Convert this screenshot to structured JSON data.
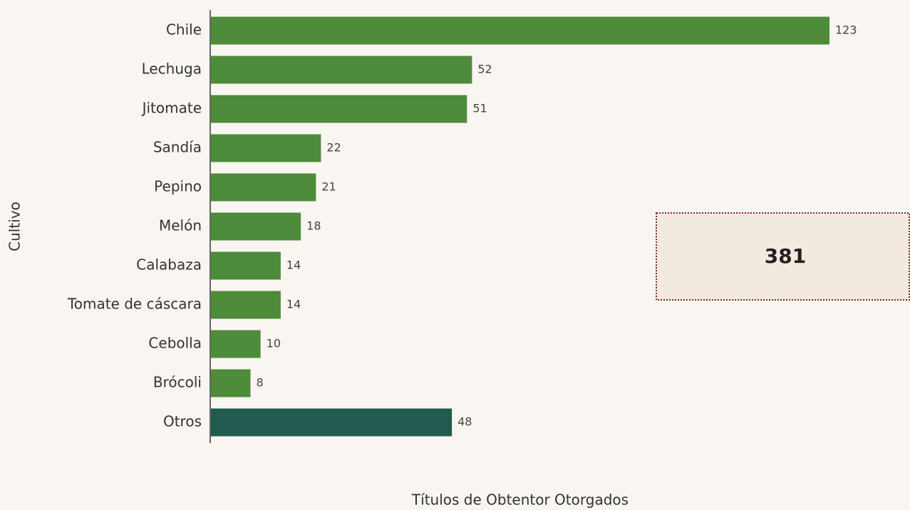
{
  "chart_data": {
    "type": "bar",
    "orientation": "horizontal",
    "categories": [
      "Chile",
      "Lechuga",
      "Jitomate",
      "Sandía",
      "Pepino",
      "Melón",
      "Calabaza",
      "Tomate de cáscara",
      "Cebolla",
      "Brócoli",
      "Otros"
    ],
    "values": [
      123,
      52,
      51,
      22,
      21,
      18,
      14,
      14,
      10,
      8,
      48
    ],
    "colors": [
      "#4e8b3a",
      "#4e8b3a",
      "#4e8b3a",
      "#4e8b3a",
      "#4e8b3a",
      "#4e8b3a",
      "#4e8b3a",
      "#4e8b3a",
      "#4e8b3a",
      "#4e8b3a",
      "#215a4f"
    ],
    "xlabel": "Títulos de Obtentor Otorgados",
    "ylabel": "Cultivo",
    "annotation": "381"
  }
}
